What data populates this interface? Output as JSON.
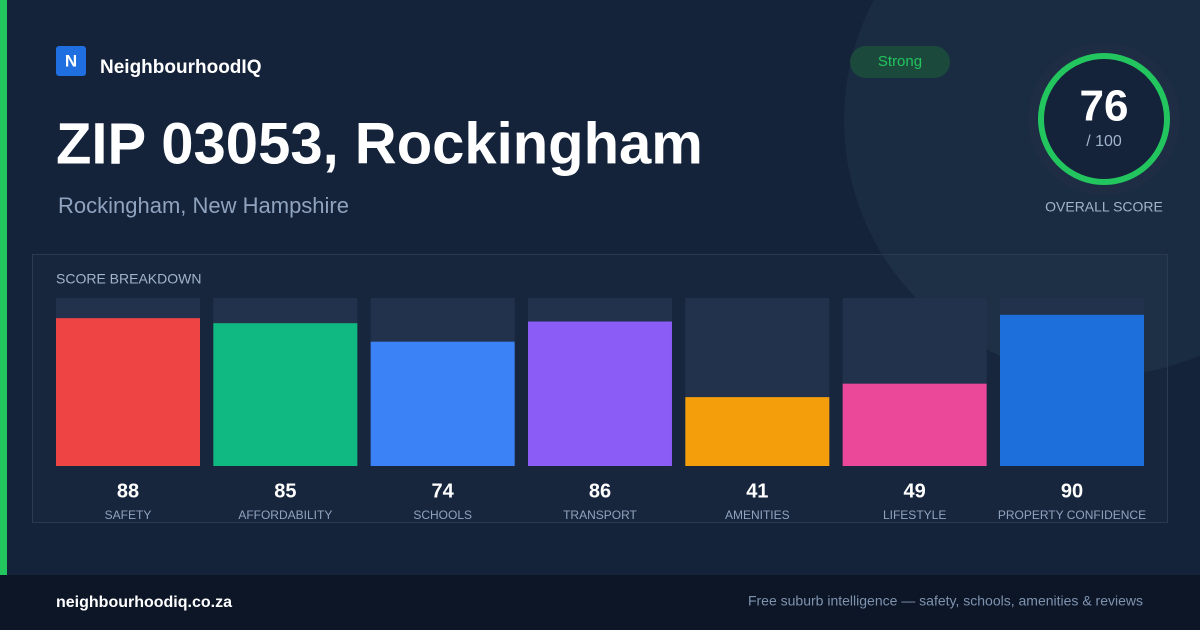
{
  "brand": "NeighbourhoodIQ",
  "logo_letter": "N",
  "title": "ZIP 03053, Rockingham",
  "subtitle": "Rockingham, New Hampshire",
  "badge": "Strong",
  "score": 76,
  "score_max": {
    "value": 100,
    "label": "/ 100"
  },
  "score_label": "OVERALL SCORE",
  "breakdown": {
    "title": "SCORE BREAKDOWN",
    "items": [
      {
        "label": "SAFETY",
        "value": 88,
        "color": "#ef4444"
      },
      {
        "label": "AFFORDABILITY",
        "value": 85,
        "color": "#10b981"
      },
      {
        "label": "SCHOOLS",
        "value": 74,
        "color": "#3b82f6"
      },
      {
        "label": "TRANSPORT",
        "value": 86,
        "color": "#8b5cf6"
      },
      {
        "label": "AMENITIES",
        "value": 41,
        "color": "#f59e0b"
      },
      {
        "label": "LIFESTYLE",
        "value": 49,
        "color": "#ec4899"
      },
      {
        "label": "PROPERTY CONFIDENCE",
        "value": 90,
        "color": "#1d6fdc"
      }
    ]
  },
  "footer": {
    "site": "neighbourhoodiq.co.za",
    "tagline": "Free suburb intelligence — safety, schools, amenities & reviews"
  }
}
